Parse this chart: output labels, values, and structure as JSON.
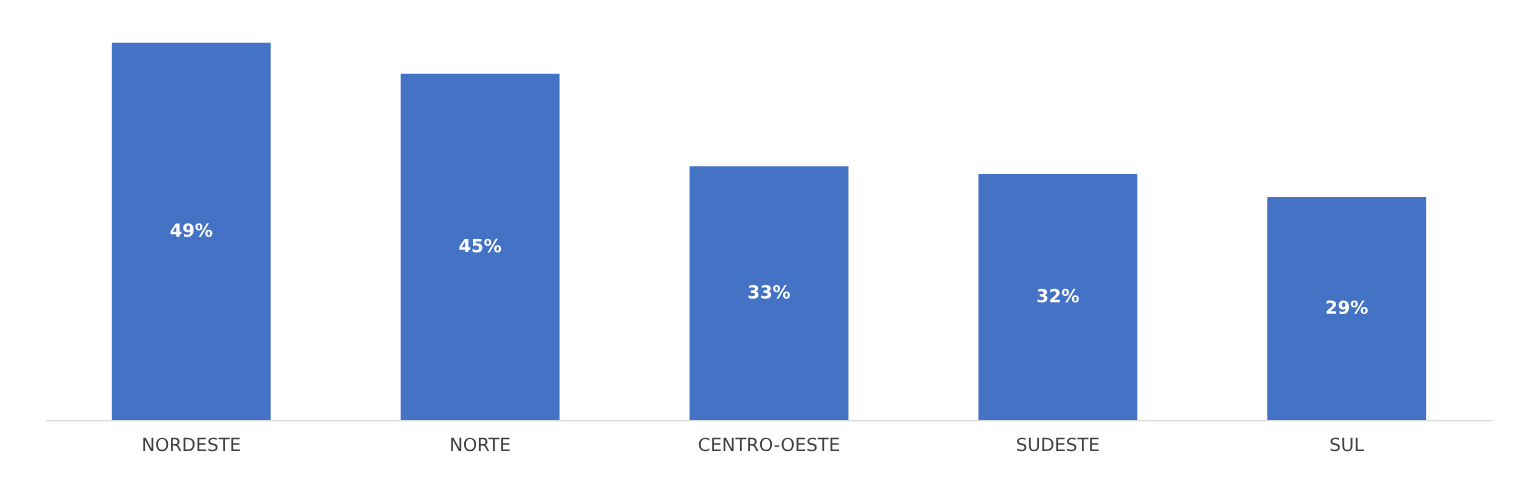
{
  "chart_data": {
    "type": "bar",
    "categories": [
      "NORDESTE",
      "NORTE",
      "CENTRO-OESTE",
      "SUDESTE",
      "SUL"
    ],
    "values": [
      49,
      45,
      33,
      32,
      29
    ],
    "value_labels": [
      "49%",
      "45%",
      "33%",
      "32%",
      "29%"
    ],
    "color": "#4472c4"
  }
}
